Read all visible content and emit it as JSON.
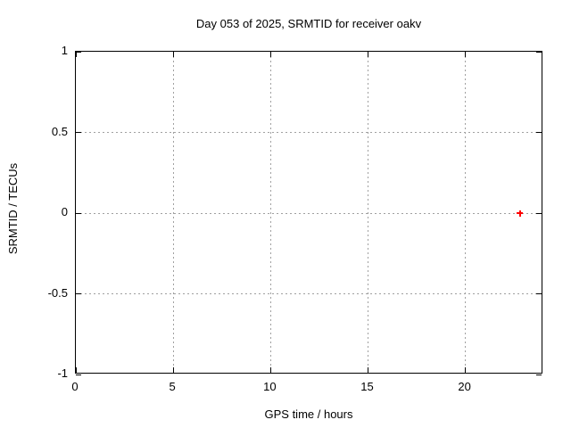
{
  "window": {
    "background": "#ffffff"
  },
  "chart_data": {
    "type": "scatter",
    "title": "Day 053 of 2025, SRMTID for receiver oakv",
    "xlabel": "GPS time / hours",
    "ylabel": "SRMTID / TECUs",
    "xlim": [
      0,
      24
    ],
    "ylim": [
      -1,
      1
    ],
    "xticks": [
      0,
      5,
      10,
      15,
      20
    ],
    "yticks": [
      -1,
      -0.5,
      0,
      0.5,
      1
    ],
    "grid": "dashed",
    "grid_color": "#a0a0a0",
    "border_color": "#000000",
    "legend": "none",
    "series": [
      {
        "name": "SRMTID",
        "marker": "plus",
        "color": "#ff0000",
        "points": [
          {
            "x": 22.8,
            "y": 0.0
          }
        ]
      }
    ]
  }
}
